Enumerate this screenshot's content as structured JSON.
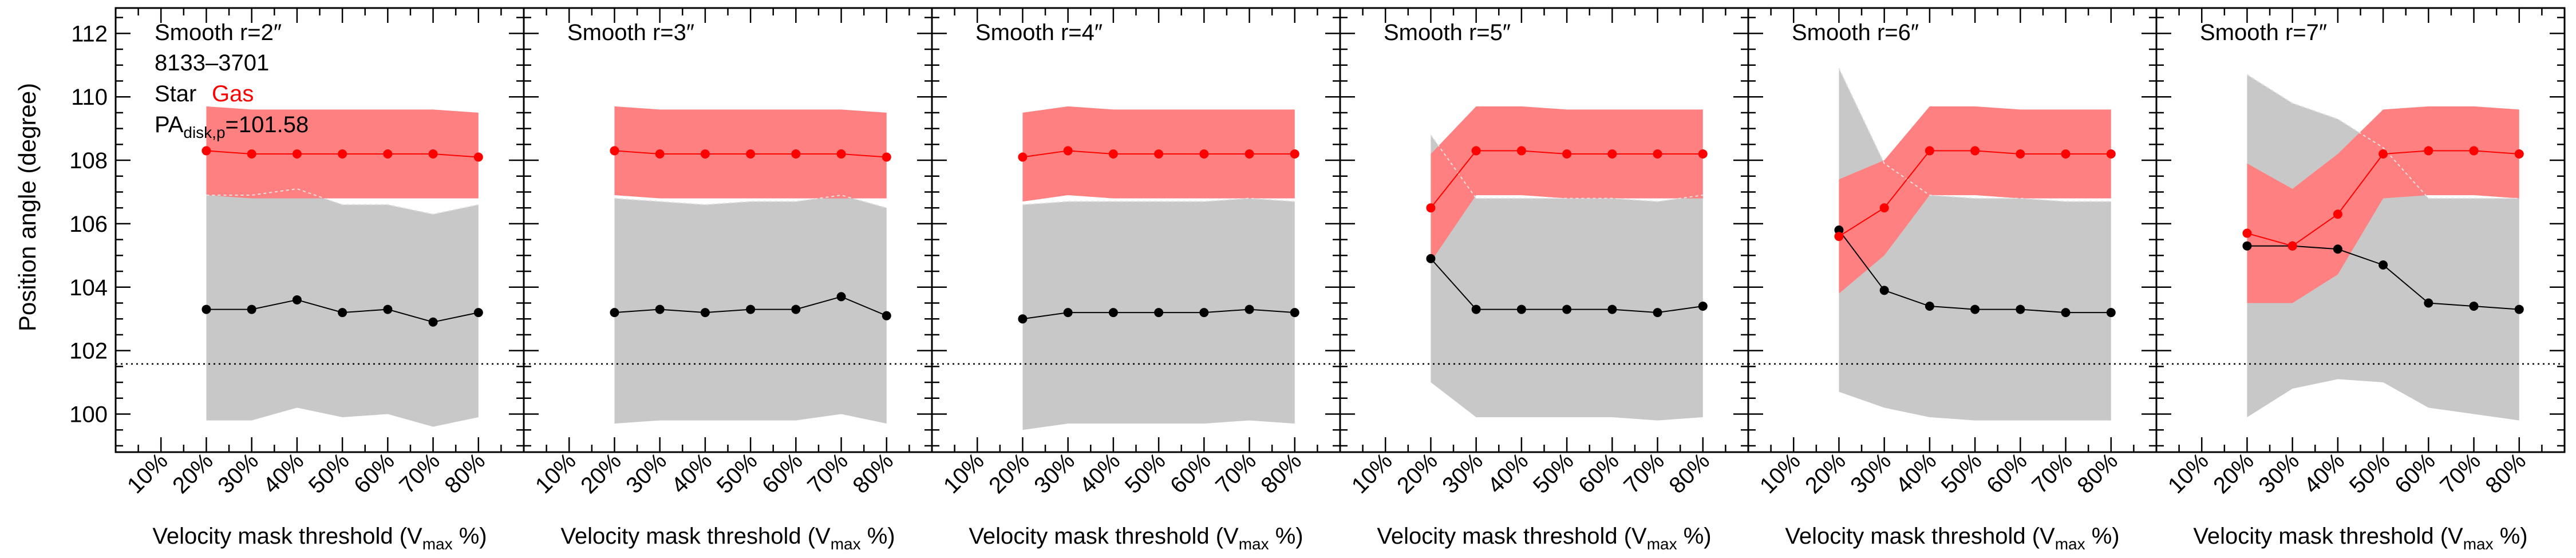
{
  "figure": {
    "ylabel": "Position angle (degree)",
    "xlabel_main": "Velocity mask threshold (V",
    "xlabel_sub": "max",
    "xlabel_tail": " %)",
    "galaxy_id": "8133–3701",
    "legend_star": "Star",
    "legend_gas": "Gas",
    "pa_main": "PA",
    "pa_sub": "disk,p",
    "pa_value": "=101.58",
    "reference_pa": 101.58
  },
  "colors": {
    "star": "#000000",
    "gas": "#ff0000",
    "star_band": "#c8c8c8",
    "gas_band": "#ff8080"
  },
  "chart_data": {
    "type": "line",
    "panels": [
      {
        "title": "Smooth r=2″",
        "x": [
          20,
          30,
          40,
          50,
          60,
          70,
          80
        ],
        "star": [
          103.3,
          103.3,
          103.6,
          103.2,
          103.3,
          102.9,
          103.2
        ],
        "star_low": [
          99.8,
          99.8,
          100.2,
          99.9,
          100.0,
          99.6,
          99.9
        ],
        "star_high": [
          106.9,
          106.9,
          107.1,
          106.6,
          106.6,
          106.3,
          106.6
        ],
        "gas": [
          108.3,
          108.2,
          108.2,
          108.2,
          108.2,
          108.2,
          108.1
        ],
        "gas_low": [
          106.9,
          106.8,
          106.8,
          106.8,
          106.8,
          106.8,
          106.8
        ],
        "gas_high": [
          109.7,
          109.6,
          109.6,
          109.6,
          109.6,
          109.6,
          109.5
        ]
      },
      {
        "title": "Smooth r=3″",
        "x": [
          20,
          30,
          40,
          50,
          60,
          70,
          80
        ],
        "star": [
          103.2,
          103.3,
          103.2,
          103.3,
          103.3,
          103.7,
          103.1
        ],
        "star_low": [
          99.7,
          99.8,
          99.8,
          99.8,
          99.8,
          100.0,
          99.7
        ],
        "star_high": [
          106.8,
          106.7,
          106.6,
          106.7,
          106.7,
          106.9,
          106.5
        ],
        "gas": [
          108.3,
          108.2,
          108.2,
          108.2,
          108.2,
          108.2,
          108.1
        ],
        "gas_low": [
          106.9,
          106.8,
          106.8,
          106.8,
          106.8,
          106.8,
          106.8
        ],
        "gas_high": [
          109.7,
          109.6,
          109.6,
          109.6,
          109.6,
          109.6,
          109.5
        ]
      },
      {
        "title": "Smooth r=4″",
        "x": [
          20,
          30,
          40,
          50,
          60,
          70,
          80
        ],
        "star": [
          103.0,
          103.2,
          103.2,
          103.2,
          103.2,
          103.3,
          103.2
        ],
        "star_low": [
          99.5,
          99.7,
          99.7,
          99.7,
          99.7,
          99.8,
          99.7
        ],
        "star_high": [
          106.6,
          106.7,
          106.7,
          106.7,
          106.7,
          106.8,
          106.7
        ],
        "gas": [
          108.1,
          108.3,
          108.2,
          108.2,
          108.2,
          108.2,
          108.2
        ],
        "gas_low": [
          106.7,
          106.9,
          106.8,
          106.8,
          106.8,
          106.8,
          106.8
        ],
        "gas_high": [
          109.5,
          109.7,
          109.6,
          109.6,
          109.6,
          109.6,
          109.6
        ]
      },
      {
        "title": "Smooth r=5″",
        "x": [
          20,
          30,
          40,
          50,
          60,
          70,
          80
        ],
        "star": [
          104.9,
          103.3,
          103.3,
          103.3,
          103.3,
          103.2,
          103.4
        ],
        "star_low": [
          101.0,
          99.9,
          99.9,
          99.9,
          99.9,
          99.8,
          99.9
        ],
        "star_high": [
          108.8,
          106.8,
          106.8,
          106.8,
          106.8,
          106.7,
          106.9
        ],
        "gas": [
          106.5,
          108.3,
          108.3,
          108.2,
          108.2,
          108.2,
          108.2
        ],
        "gas_low": [
          104.8,
          106.9,
          106.9,
          106.8,
          106.8,
          106.8,
          106.8
        ],
        "gas_high": [
          108.2,
          109.7,
          109.7,
          109.6,
          109.6,
          109.6,
          109.6
        ]
      },
      {
        "title": "Smooth r=6″",
        "x": [
          20,
          30,
          40,
          50,
          60,
          70,
          80
        ],
        "star": [
          105.8,
          103.9,
          103.4,
          103.3,
          103.3,
          103.2,
          103.2
        ],
        "star_low": [
          100.7,
          100.2,
          99.9,
          99.8,
          99.8,
          99.8,
          99.8
        ],
        "star_high": [
          110.9,
          107.9,
          106.9,
          106.8,
          106.8,
          106.7,
          106.7
        ],
        "gas": [
          105.6,
          106.5,
          108.3,
          108.3,
          108.2,
          108.2,
          108.2
        ],
        "gas_low": [
          103.8,
          105.0,
          106.9,
          106.9,
          106.8,
          106.8,
          106.8
        ],
        "gas_high": [
          107.4,
          108.0,
          109.7,
          109.7,
          109.6,
          109.6,
          109.6
        ]
      },
      {
        "title": "Smooth r=7″",
        "x": [
          20,
          30,
          40,
          50,
          60,
          70,
          80
        ],
        "star": [
          105.3,
          105.3,
          105.2,
          104.7,
          103.5,
          103.4,
          103.3
        ],
        "star_low": [
          99.9,
          100.8,
          101.1,
          101.0,
          100.2,
          100.0,
          99.8
        ],
        "star_high": [
          110.7,
          109.8,
          109.3,
          108.4,
          106.8,
          106.8,
          106.8
        ],
        "gas": [
          105.7,
          105.3,
          106.3,
          108.2,
          108.3,
          108.3,
          108.2
        ],
        "gas_low": [
          103.5,
          103.5,
          104.4,
          106.8,
          106.9,
          106.9,
          106.8
        ],
        "gas_high": [
          107.9,
          107.1,
          108.2,
          109.6,
          109.7,
          109.7,
          109.6
        ]
      }
    ],
    "x_ticks": [
      "10%",
      "20%",
      "30%",
      "40%",
      "50%",
      "60%",
      "70%",
      "80%"
    ],
    "x_tick_values": [
      10,
      20,
      30,
      40,
      50,
      60,
      70,
      80
    ],
    "xlim": [
      0,
      90
    ],
    "y_ticks": [
      100,
      102,
      104,
      106,
      108,
      110,
      112
    ],
    "ylim": [
      98.8,
      112.8
    ],
    "grid": false,
    "reference_line": "dotted horizontal at PA_disk,p"
  }
}
